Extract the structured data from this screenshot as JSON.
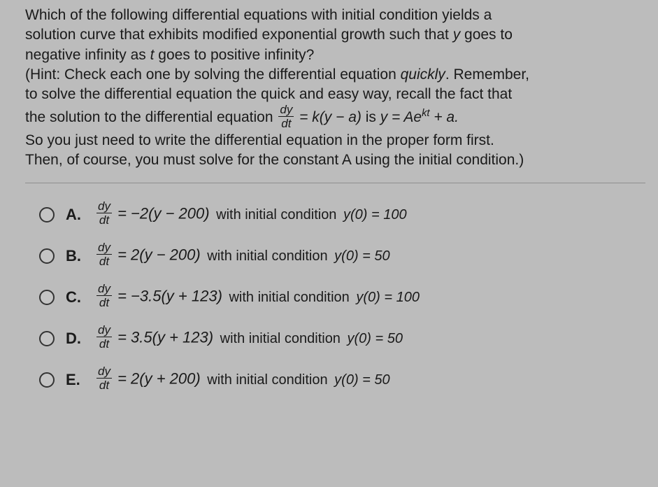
{
  "question": {
    "line1_a": "Which of the following differential equations with initial condition yields a",
    "line2_a": "solution curve that exhibits modified exponential growth such that ",
    "line2_y": "y",
    "line2_b": " goes to",
    "line3_a": "negative infinity as ",
    "line3_t": "t",
    "line3_b": " goes to positive infinity?",
    "line4_a": "(Hint: Check each one by solving the differential equation ",
    "line4_q": "quickly",
    "line4_b": ". Remember,",
    "line5": "to solve the differential equation the quick and easy way, recall the fact that",
    "line6_a": "the solution to the differential equation ",
    "frac_num": "dy",
    "frac_den": "dt",
    "line6_eq_a": " = k(y − a)",
    "line6_b": " is ",
    "line6_eq_b": "y = Ae",
    "line6_sup": "kt",
    "line6_eq_c": " + a.",
    "line7": "So you just need to write the differential equation in the proper form first.",
    "line8": "Then, of course, you must solve for the constant A using the initial condition.)"
  },
  "options": [
    {
      "id": "A",
      "letter": "A.",
      "lhs_num": "dy",
      "lhs_den": "dt",
      "eq": " = −2(y − 200)",
      "cond_text": " with initial condition ",
      "cond_eq": "y(0) = 100"
    },
    {
      "id": "B",
      "letter": "B.",
      "lhs_num": "dy",
      "lhs_den": "dt",
      "eq": " = 2(y − 200)",
      "cond_text": " with initial condition ",
      "cond_eq": "y(0) = 50"
    },
    {
      "id": "C",
      "letter": "C.",
      "lhs_num": "dy",
      "lhs_den": "dt",
      "eq": " = −3.5(y + 123)",
      "cond_text": " with initial condition ",
      "cond_eq": "y(0) = 100"
    },
    {
      "id": "D",
      "letter": "D.",
      "lhs_num": "dy",
      "lhs_den": "dt",
      "eq": " = 3.5(y + 123)",
      "cond_text": " with initial condition ",
      "cond_eq": "y(0) = 50"
    },
    {
      "id": "E",
      "letter": "E.",
      "lhs_num": "dy",
      "lhs_den": "dt",
      "eq": " = 2(y + 200)",
      "cond_text": " with initial condition ",
      "cond_eq": "y(0) = 50"
    }
  ],
  "styling": {
    "background_color": "#bcbcbc",
    "text_color": "#1a1a1a",
    "question_fontsize": 21,
    "option_fontsize": 22,
    "radio_border": "#333333",
    "divider_color": "#8f8f8f"
  }
}
